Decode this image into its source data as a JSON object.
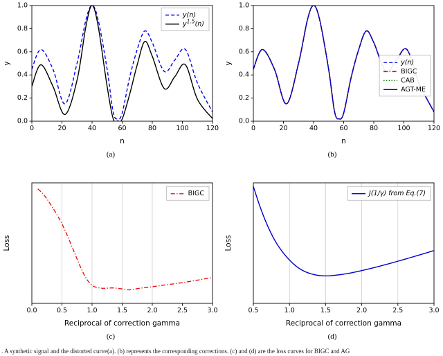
{
  "caption": ". A synthetic signal and the distorted curve(a). (b) represents the corresponding corrections. (c) and (d) are the loss curves for BIGC and AG",
  "style": {
    "axis_color": "#000000",
    "grid_color": "#c9c9c9",
    "legend_border": "#b3b3b3",
    "background": "#ffffff"
  },
  "chart_data": [
    {
      "id": "a",
      "type": "line",
      "sublabel": "(a)",
      "xlabel": "n",
      "ylabel": "y",
      "xlim": [
        0,
        120
      ],
      "ylim": [
        0,
        1
      ],
      "xticks": {
        "values": [
          0,
          20,
          40,
          60,
          80,
          100,
          120
        ],
        "labels": [
          "0",
          "20",
          "40",
          "60",
          "80",
          "100",
          "120"
        ]
      },
      "yticks": {
        "values": [
          0,
          0.2,
          0.4,
          0.6,
          0.8,
          1
        ],
        "labels": [
          "0.0",
          "0.2",
          "0.4",
          "0.6",
          "0.8",
          "1.0"
        ]
      },
      "grid_x": [],
      "legend": {
        "top_frac": 0.02
      },
      "series": [
        {
          "name": "y(n)",
          "italic": true,
          "color": "#0000ee",
          "dash": "dashed",
          "width": 1.4,
          "x": [
            0,
            6,
            14,
            22,
            30,
            36,
            40,
            44,
            50,
            54,
            57,
            60,
            65,
            70,
            75,
            80,
            88,
            95,
            102,
            110,
            120
          ],
          "y": [
            0.45,
            0.62,
            0.45,
            0.15,
            0.5,
            0.88,
            1.0,
            0.88,
            0.45,
            0.08,
            0.02,
            0.07,
            0.38,
            0.62,
            0.78,
            0.68,
            0.43,
            0.53,
            0.62,
            0.33,
            0.08
          ]
        },
        {
          "name": "y^1.5(n)",
          "italic": true,
          "color": "#000000",
          "dash": "solid",
          "width": 1.4,
          "x": [
            0,
            6,
            14,
            22,
            30,
            36,
            40,
            44,
            50,
            54,
            57,
            60,
            65,
            70,
            75,
            80,
            88,
            95,
            102,
            110,
            120
          ],
          "y": [
            0.302,
            0.488,
            0.302,
            0.058,
            0.354,
            0.825,
            1.0,
            0.825,
            0.302,
            0.023,
            0.003,
            0.019,
            0.234,
            0.488,
            0.689,
            0.561,
            0.282,
            0.386,
            0.488,
            0.19,
            0.023
          ]
        }
      ]
    },
    {
      "id": "b",
      "type": "line",
      "sublabel": "(b)",
      "xlabel": "n",
      "ylabel": "y",
      "xlim": [
        0,
        120
      ],
      "ylim": [
        0,
        1
      ],
      "xticks": {
        "values": [
          0,
          20,
          40,
          60,
          80,
          100,
          120
        ],
        "labels": [
          "0",
          "20",
          "40",
          "60",
          "80",
          "100",
          "120"
        ]
      },
      "yticks": {
        "values": [
          0,
          0.2,
          0.4,
          0.6,
          0.8,
          1
        ],
        "labels": [
          "0.0",
          "0.2",
          "0.4",
          "0.6",
          "0.8",
          "1.0"
        ]
      },
      "grid_x": [],
      "legend": {
        "top_frac": 0.43
      },
      "series": [
        {
          "name": "y(n)",
          "italic": true,
          "color": "#0000ee",
          "dash": "dashed",
          "width": 1.2,
          "x": [
            0,
            6,
            14,
            22,
            30,
            36,
            40,
            44,
            50,
            54,
            57,
            60,
            65,
            70,
            75,
            80,
            88,
            95,
            102,
            110,
            120
          ],
          "y": [
            0.45,
            0.62,
            0.45,
            0.15,
            0.5,
            0.88,
            1.0,
            0.88,
            0.45,
            0.08,
            0.02,
            0.07,
            0.38,
            0.62,
            0.78,
            0.68,
            0.43,
            0.53,
            0.62,
            0.33,
            0.08
          ]
        },
        {
          "name": "BIGC",
          "italic": false,
          "color": "#ee0000",
          "dash": "dashdot",
          "width": 1.7,
          "x": [
            0,
            6,
            14,
            22,
            30,
            36,
            40,
            44,
            50,
            54,
            57,
            60,
            65,
            70,
            75,
            80,
            88,
            95,
            102,
            110,
            120
          ],
          "y": [
            0.45,
            0.62,
            0.45,
            0.15,
            0.5,
            0.88,
            1.0,
            0.88,
            0.45,
            0.08,
            0.02,
            0.07,
            0.38,
            0.62,
            0.78,
            0.68,
            0.43,
            0.53,
            0.62,
            0.33,
            0.08
          ]
        },
        {
          "name": "CAB",
          "italic": false,
          "color": "#007700",
          "dash": "dotted",
          "width": 1.7,
          "x": [
            0,
            6,
            14,
            22,
            30,
            36,
            40,
            44,
            50,
            54,
            57,
            60,
            65,
            70,
            75,
            80,
            88,
            95,
            102,
            110,
            120
          ],
          "y": [
            0.45,
            0.62,
            0.45,
            0.15,
            0.5,
            0.88,
            1.0,
            0.88,
            0.45,
            0.08,
            0.02,
            0.07,
            0.38,
            0.62,
            0.78,
            0.68,
            0.43,
            0.53,
            0.62,
            0.33,
            0.08
          ]
        },
        {
          "name": "AGT-ME",
          "italic": false,
          "color": "#0000cc",
          "dash": "solid",
          "width": 1.3,
          "x": [
            0,
            6,
            14,
            22,
            30,
            36,
            40,
            44,
            50,
            54,
            57,
            60,
            65,
            70,
            75,
            80,
            88,
            95,
            102,
            110,
            120
          ],
          "y": [
            0.45,
            0.62,
            0.45,
            0.15,
            0.5,
            0.88,
            1.0,
            0.88,
            0.45,
            0.08,
            0.02,
            0.07,
            0.38,
            0.62,
            0.78,
            0.68,
            0.43,
            0.53,
            0.62,
            0.33,
            0.08
          ]
        }
      ]
    },
    {
      "id": "c",
      "type": "line",
      "sublabel": "(c)",
      "xlabel": "Reciprocal of correction gamma",
      "ylabel": "Loss",
      "xlim": [
        0,
        3
      ],
      "ylim": [
        0,
        1
      ],
      "xticks": {
        "values": [
          0,
          0.5,
          1,
          1.5,
          2,
          2.5,
          3
        ],
        "labels": [
          "0.0",
          "0.5",
          "1.0",
          "1.5",
          "2.0",
          "2.5",
          "3.0"
        ]
      },
      "yticks": {
        "values": [],
        "labels": []
      },
      "grid_x": [
        0.5,
        1,
        1.5,
        2
      ],
      "legend": {
        "top_frac": 0.03
      },
      "series": [
        {
          "name": "BIGC",
          "italic": false,
          "color": "#ee0000",
          "dash": "dashdot",
          "width": 1.3,
          "x": [
            0.1,
            0.2,
            0.3,
            0.4,
            0.5,
            0.6,
            0.7,
            0.8,
            0.9,
            1.0,
            1.1,
            1.2,
            1.35,
            1.5,
            1.6,
            1.7,
            1.8,
            2.0,
            2.2,
            2.4,
            2.6,
            2.8,
            3.0
          ],
          "y": [
            0.95,
            0.9,
            0.83,
            0.75,
            0.66,
            0.55,
            0.43,
            0.31,
            0.21,
            0.15,
            0.13,
            0.125,
            0.128,
            0.12,
            0.112,
            0.118,
            0.126,
            0.138,
            0.152,
            0.165,
            0.18,
            0.197,
            0.215
          ]
        }
      ]
    },
    {
      "id": "d",
      "type": "line",
      "sublabel": "(d)",
      "xlabel": "Reciprocal of correction gamma",
      "ylabel": "Loss",
      "xlim": [
        0.5,
        3
      ],
      "ylim": [
        0,
        1
      ],
      "xticks": {
        "values": [
          0.5,
          1,
          1.5,
          2,
          2.5,
          3
        ],
        "labels": [
          "0.5",
          "1.0",
          "1.5",
          "2.0",
          "2.5",
          "3.0"
        ]
      },
      "yticks": {
        "values": [],
        "labels": []
      },
      "grid_x": [
        1,
        1.5,
        2,
        2.5
      ],
      "legend": {
        "top_frac": 0.03
      },
      "series": [
        {
          "name": "J(1/γ) from Eq.(7)",
          "italic": true,
          "color": "#0000cc",
          "dash": "solid",
          "width": 1.4,
          "x": [
            0.5,
            0.6,
            0.7,
            0.8,
            0.9,
            1.0,
            1.1,
            1.2,
            1.3,
            1.4,
            1.5,
            1.6,
            1.8,
            2.0,
            2.2,
            2.4,
            2.6,
            2.8,
            3.0
          ],
          "y": [
            0.97,
            0.79,
            0.64,
            0.52,
            0.43,
            0.36,
            0.305,
            0.268,
            0.245,
            0.232,
            0.228,
            0.231,
            0.247,
            0.272,
            0.301,
            0.333,
            0.367,
            0.402,
            0.438
          ]
        }
      ]
    }
  ]
}
